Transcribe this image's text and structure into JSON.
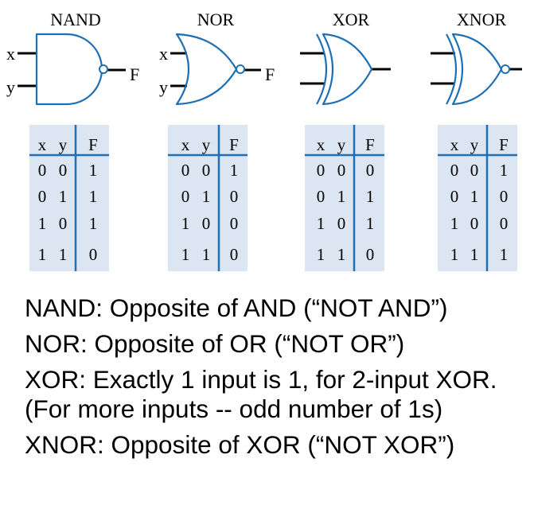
{
  "gates": [
    {
      "title": "NAND",
      "input_labels": [
        "x",
        "y"
      ],
      "output_label": "F",
      "truth_table": {
        "headers": [
          "x",
          "y",
          "F"
        ],
        "rows": [
          [
            "0",
            "0",
            "1"
          ],
          [
            "0",
            "1",
            "1"
          ],
          [
            "1",
            "0",
            "1"
          ],
          [
            "1",
            "1",
            "0"
          ]
        ]
      }
    },
    {
      "title": "NOR",
      "input_labels": [
        "x",
        "y"
      ],
      "output_label": "F",
      "truth_table": {
        "headers": [
          "x",
          "y",
          "F"
        ],
        "rows": [
          [
            "0",
            "0",
            "1"
          ],
          [
            "0",
            "1",
            "0"
          ],
          [
            "1",
            "0",
            "0"
          ],
          [
            "1",
            "1",
            "0"
          ]
        ]
      }
    },
    {
      "title": "XOR",
      "input_labels": [],
      "output_label": "",
      "truth_table": {
        "headers": [
          "x",
          "y",
          "F"
        ],
        "rows": [
          [
            "0",
            "0",
            "0"
          ],
          [
            "0",
            "1",
            "1"
          ],
          [
            "1",
            "0",
            "1"
          ],
          [
            "1",
            "1",
            "0"
          ]
        ]
      }
    },
    {
      "title": "XNOR",
      "input_labels": [],
      "output_label": "",
      "truth_table": {
        "headers": [
          "x",
          "y",
          "F"
        ],
        "rows": [
          [
            "0",
            "0",
            "1"
          ],
          [
            "0",
            "1",
            "0"
          ],
          [
            "1",
            "0",
            "0"
          ],
          [
            "1",
            "1",
            "1"
          ]
        ]
      }
    }
  ],
  "descriptions": [
    "NAND: Opposite of AND (“NOT AND”)",
    "NOR: Opposite of OR (“NOT OR”)",
    "XOR: Exactly 1 input is 1, for 2-input XOR. (For more inputs -- odd number of 1s)",
    "XNOR: Opposite of XOR (“NOT XOR”)"
  ],
  "colors": {
    "gate_outline": "#1e6fb4",
    "table_background": "#dce6f2",
    "table_lines": "#1e6fb4",
    "text": "#000000"
  }
}
